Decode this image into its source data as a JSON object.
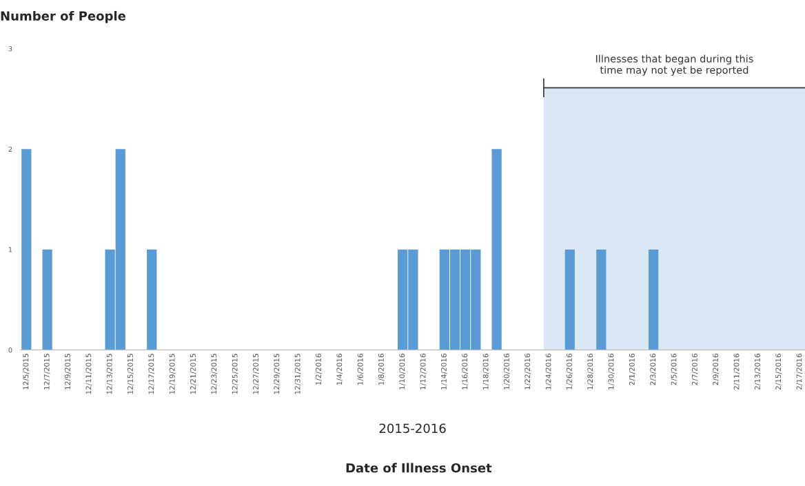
{
  "chart_data": {
    "type": "bar",
    "ylabel": "Number of People",
    "xlabel": "2015-2016",
    "annotations": [
      "Date of Illness Onset"
    ],
    "categories": [
      "12/5/2015",
      null,
      "12/7/2015",
      null,
      "12/9/2015",
      null,
      "12/11/2015",
      null,
      "12/13/2015",
      null,
      "12/15/2015",
      null,
      "12/17/2015",
      null,
      "12/19/2015",
      null,
      "12/21/2015",
      null,
      "12/23/2015",
      null,
      "12/25/2015",
      null,
      "12/27/2015",
      null,
      "12/29/2015",
      null,
      "12/31/2015",
      null,
      "1/2/2016",
      null,
      "1/4/2016",
      null,
      "1/6/2016",
      null,
      "1/8/2016",
      null,
      "1/10/2016",
      null,
      "1/12/2016",
      null,
      "1/14/2016",
      null,
      "1/16/2016",
      null,
      "1/18/2016",
      null,
      "1/20/2016",
      null,
      "1/22/2016",
      null,
      "1/24/2016",
      null,
      "1/26/2016",
      null,
      "1/28/2016",
      null,
      "1/30/2016",
      null,
      "2/1/2016",
      null,
      "2/3/2016",
      null,
      "2/5/2016",
      null,
      "2/7/2016",
      null,
      "2/9/2016",
      null,
      "2/11/2016",
      null,
      "2/13/2016",
      null,
      "2/15/2016",
      null,
      "2/17/2016"
    ],
    "values": [
      2,
      0,
      1,
      0,
      0,
      0,
      0,
      0,
      1,
      2,
      0,
      0,
      1,
      0,
      0,
      0,
      0,
      0,
      0,
      0,
      0,
      0,
      0,
      0,
      0,
      0,
      0,
      0,
      0,
      0,
      0,
      0,
      0,
      0,
      0,
      0,
      1,
      1,
      0,
      0,
      1,
      1,
      1,
      1,
      0,
      2,
      0,
      0,
      0,
      0,
      0,
      0,
      1,
      0,
      0,
      1,
      0,
      0,
      0,
      0,
      1,
      0,
      0,
      0,
      0,
      0,
      0,
      0,
      0,
      0,
      0,
      0,
      0,
      0,
      0
    ],
    "color": "#5b9bd5",
    "ylim": [
      0,
      3
    ],
    "yticks": [
      0,
      1,
      2,
      3
    ],
    "grid": false,
    "bands": [
      {
        "axis": "x",
        "from": "1/24/2016",
        "to": "2/17/2016",
        "label": "Illnesses that began during this\ntime may not yet be reported",
        "color": "#dae8f5"
      }
    ]
  }
}
